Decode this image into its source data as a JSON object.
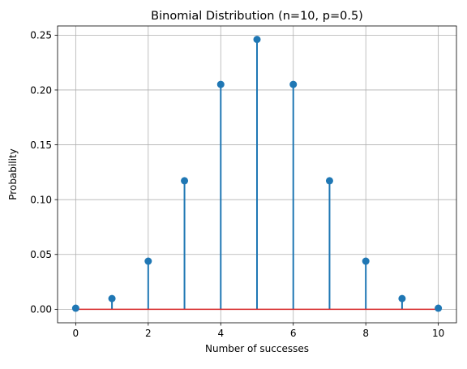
{
  "chart_data": {
    "type": "stem",
    "title": "Binomial Distribution (n=10, p=0.5)",
    "xlabel": "Number of successes",
    "ylabel": "Probability",
    "xlim": [
      -0.5,
      10.5
    ],
    "ylim": [
      -0.0123,
      0.2584
    ],
    "xticks": [
      0,
      2,
      4,
      6,
      8,
      10
    ],
    "yticks": [
      0.0,
      0.05,
      0.1,
      0.15,
      0.2,
      0.25
    ],
    "ytick_labels": [
      "0.00",
      "0.05",
      "0.10",
      "0.15",
      "0.20",
      "0.25"
    ],
    "grid": true,
    "x": [
      0,
      1,
      2,
      3,
      4,
      5,
      6,
      7,
      8,
      9,
      10
    ],
    "y": [
      0.001,
      0.0098,
      0.0439,
      0.1172,
      0.2051,
      0.2461,
      0.2051,
      0.1172,
      0.0439,
      0.0098,
      0.001
    ],
    "baseline": 0,
    "colors": {
      "stem": "#1f77b4",
      "marker": "#1f77b4",
      "baseline": "#d62728",
      "grid": "#b0b0b0"
    }
  }
}
